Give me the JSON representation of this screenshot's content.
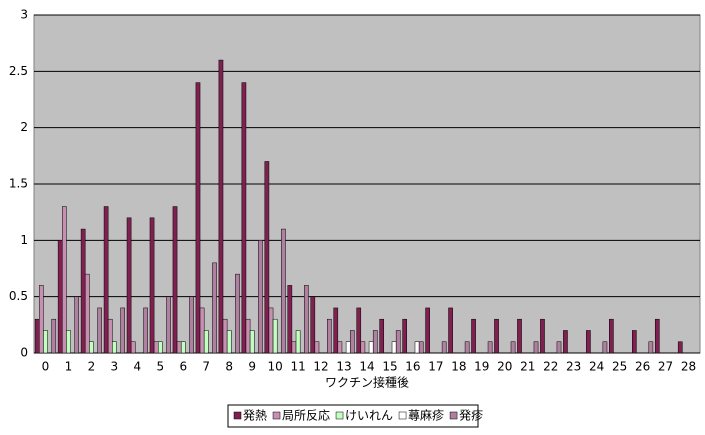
{
  "chart_data": {
    "type": "bar",
    "x_label": "ワクチン接種後",
    "categories": [
      "0",
      "1",
      "2",
      "3",
      "4",
      "5",
      "6",
      "7",
      "8",
      "9",
      "10",
      "11",
      "12",
      "13",
      "14",
      "15",
      "16",
      "17",
      "18",
      "19",
      "20",
      "21",
      "22",
      "23",
      "24",
      "25",
      "26",
      "27",
      "28"
    ],
    "series": [
      {
        "name": "発熱",
        "color": "#802050",
        "values": [
          0.3,
          1.0,
          1.1,
          1.3,
          1.2,
          1.2,
          1.3,
          2.4,
          2.6,
          2.4,
          1.7,
          0.6,
          0.5,
          0.4,
          0.4,
          0.3,
          0.3,
          0.4,
          0.4,
          0.3,
          0.3,
          0.3,
          0.3,
          0.2,
          0.2,
          0.3,
          0.2,
          0.3,
          0.1
        ]
      },
      {
        "name": "局所反応",
        "color": "#c890b0",
        "values": [
          0.6,
          1.3,
          0.7,
          0.3,
          0.1,
          0.1,
          0.1,
          0.4,
          0.3,
          0.3,
          0.4,
          0.1,
          0.1,
          0.1,
          0.1,
          0,
          0,
          0,
          0,
          0,
          0,
          0,
          0,
          0,
          0,
          0,
          0,
          0,
          0
        ]
      },
      {
        "name": "けいれん",
        "color": "#c0ffc0",
        "values": [
          0.2,
          0.2,
          0.1,
          0.1,
          0,
          0.1,
          0.1,
          0.2,
          0.2,
          0.2,
          0.3,
          0.2,
          0,
          0,
          0,
          0,
          0,
          0,
          0,
          0,
          0,
          0,
          0,
          0,
          0,
          0,
          0,
          0,
          0
        ]
      },
      {
        "name": "蕁麻疹",
        "color": "#ffffff",
        "values": [
          0,
          0,
          0,
          0,
          0,
          0,
          0,
          0,
          0,
          0,
          0,
          0,
          0,
          0.1,
          0.1,
          0.1,
          0.1,
          0,
          0,
          0,
          0,
          0,
          0,
          0,
          0,
          0,
          0,
          0,
          0
        ]
      },
      {
        "name": "発疹",
        "color": "#b080a0",
        "values": [
          0.3,
          0.5,
          0.4,
          0.4,
          0.4,
          0.5,
          0.5,
          0.8,
          0.7,
          1.0,
          1.1,
          0.6,
          0.3,
          0.2,
          0.2,
          0.2,
          0.1,
          0.1,
          0.1,
          0.1,
          0.1,
          0.1,
          0.1,
          0,
          0.1,
          0,
          0.1,
          0,
          0
        ]
      }
    ],
    "ylim": [
      0,
      3
    ],
    "yticks": [
      0,
      0.5,
      1,
      1.5,
      2,
      2.5,
      3
    ],
    "grid": true,
    "legend": "bottom"
  }
}
